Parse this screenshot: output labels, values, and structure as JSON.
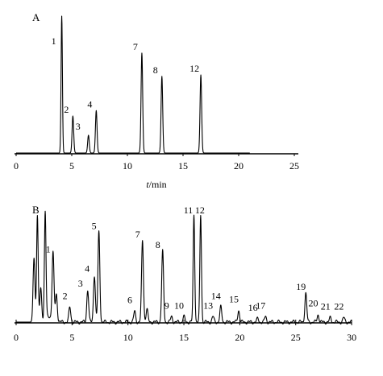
{
  "chart_data": [
    {
      "type": "line",
      "panel_label": "A",
      "xlabel_italic": "t",
      "xlabel_unit": "/min",
      "xlim": [
        0,
        25
      ],
      "x_ticks": [
        0,
        5,
        10,
        15,
        20,
        25
      ],
      "trace_end": 21,
      "grid": false,
      "peaks": [
        {
          "label": "1",
          "x": 4.1,
          "height": 1.0
        },
        {
          "label": "2",
          "x": 5.1,
          "height": 0.27
        },
        {
          "label": "3",
          "x": 6.5,
          "height": 0.13
        },
        {
          "label": "4",
          "x": 7.2,
          "height": 0.31
        },
        {
          "label": "7",
          "x": 11.3,
          "height": 0.73
        },
        {
          "label": "8",
          "x": 13.1,
          "height": 0.56
        },
        {
          "label": "12",
          "x": 16.6,
          "height": 0.57
        }
      ]
    },
    {
      "type": "line",
      "panel_label": "B",
      "xlim": [
        0,
        30
      ],
      "x_ticks": [
        0,
        5,
        10,
        15,
        20,
        25,
        30
      ],
      "grid": false,
      "peaks": [
        {
          "label": "",
          "x": 1.6,
          "height": 0.6
        },
        {
          "label": "",
          "x": 1.9,
          "height": 1.0
        },
        {
          "label": "",
          "x": 2.2,
          "height": 0.3
        },
        {
          "label": "",
          "x": 2.6,
          "height": 1.0
        },
        {
          "label": "1",
          "x": 3.3,
          "height": 0.62
        },
        {
          "label": "",
          "x": 3.6,
          "height": 0.25
        },
        {
          "label": "2",
          "x": 4.8,
          "height": 0.14
        },
        {
          "label": "3",
          "x": 6.4,
          "height": 0.3
        },
        {
          "label": "4",
          "x": 7.0,
          "height": 0.44
        },
        {
          "label": "5",
          "x": 7.4,
          "height": 0.84
        },
        {
          "label": "6",
          "x": 10.6,
          "height": 0.1
        },
        {
          "label": "7",
          "x": 11.3,
          "height": 0.76
        },
        {
          "label": "",
          "x": 11.7,
          "height": 0.12
        },
        {
          "label": "8",
          "x": 13.1,
          "height": 0.66
        },
        {
          "label": "9",
          "x": 13.9,
          "height": 0.05
        },
        {
          "label": "10",
          "x": 15.0,
          "height": 0.05
        },
        {
          "label": "11",
          "x": 15.9,
          "height": 1.0
        },
        {
          "label": "12",
          "x": 16.5,
          "height": 1.0
        },
        {
          "label": "13",
          "x": 17.6,
          "height": 0.05
        },
        {
          "label": "14",
          "x": 18.3,
          "height": 0.14
        },
        {
          "label": "15",
          "x": 19.9,
          "height": 0.11
        },
        {
          "label": "16",
          "x": 21.6,
          "height": 0.03
        },
        {
          "label": "17",
          "x": 22.3,
          "height": 0.05
        },
        {
          "label": "19",
          "x": 25.9,
          "height": 0.27
        },
        {
          "label": "20",
          "x": 27.0,
          "height": 0.07
        },
        {
          "label": "21",
          "x": 28.1,
          "height": 0.04
        },
        {
          "label": "22",
          "x": 29.3,
          "height": 0.04
        }
      ]
    }
  ]
}
